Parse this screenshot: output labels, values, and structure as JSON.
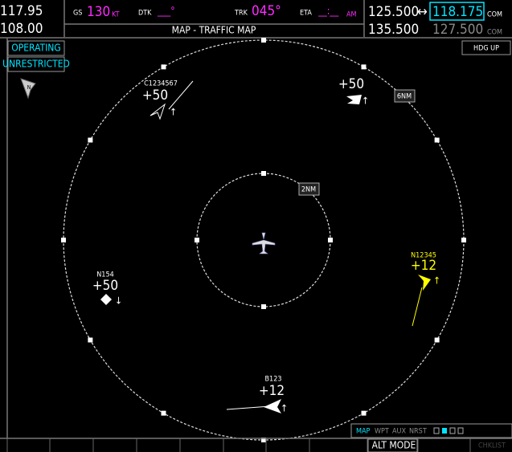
{
  "nav": {
    "active": "117.95",
    "standby": "108.00"
  },
  "status": {
    "gs_label": "GS",
    "gs_value": "130",
    "gs_unit": "KT",
    "dtk_label": "DTK",
    "dtk_value": "___°",
    "trk_label": "TRK",
    "trk_value": "045°",
    "eta_label": "ETA",
    "eta_value": "__:__",
    "eta_unit": "AM"
  },
  "page_title": "MAP - TRAFFIC MAP",
  "com": {
    "row1": {
      "standby": "125.500",
      "swap": "↔",
      "active": "118.175",
      "label": "COM"
    },
    "row2": {
      "standby": "135.500",
      "active": "127.500",
      "label": "COM"
    }
  },
  "map": {
    "mode_status": [
      "OPERATING",
      "UNRESTRICTED"
    ],
    "north": "N",
    "orientation": "HDG UP",
    "ranges": [
      "2NM",
      "6NM"
    ]
  },
  "traffic": [
    {
      "id": "C1234567",
      "alt": "+50"
    },
    {
      "alt": "+50"
    },
    {
      "id": "N154",
      "alt": "+50"
    },
    {
      "id": "N12345",
      "alt": "+12"
    },
    {
      "id": "B123",
      "alt": "+12"
    }
  ],
  "page_tabs": [
    "MAP",
    "WPT",
    "AUX",
    "NRST"
  ],
  "softkeys": [
    "ALT MODE",
    "CHKLIST"
  ]
}
